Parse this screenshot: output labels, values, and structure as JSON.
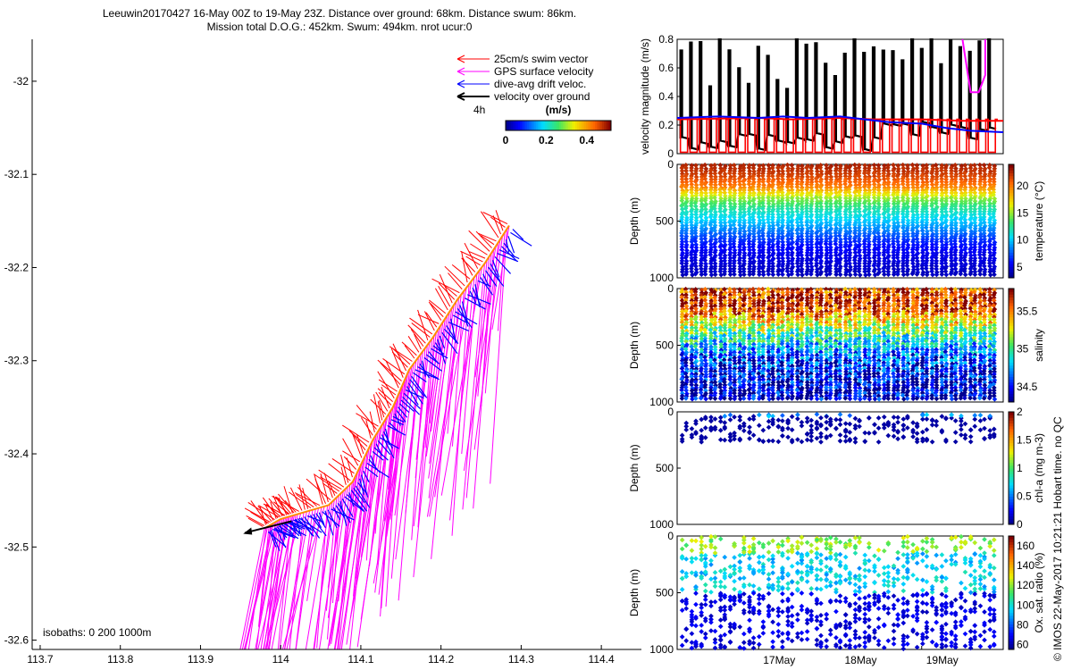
{
  "header": {
    "line1": "Leeuwin20170427 16-May 00Z to 19-May 23Z. Distance over ground: 68km. Distance swum: 86km.",
    "line2": "Mission total D.O.G.: 452km. Swum: 494km. nrot ucur:0"
  },
  "side_note": "© IMOS 22-May-2017 10:21:21 Hobart time. no QC",
  "colors": {
    "swim": "#ff0000",
    "gps": "#ff00ff",
    "drift": "#0000ff",
    "ground": "#000000",
    "track": "#ff8c00"
  },
  "chart_data": [
    {
      "type": "scatter",
      "panel": "map",
      "x_ticks": [
        "113.7",
        "113.8",
        "113.9",
        "114",
        "114.1",
        "114.2",
        "114.3",
        "114.4"
      ],
      "y_ticks": [
        "-32",
        "-32.1",
        "-32.2",
        "-32.3",
        "-32.4",
        "-32.5",
        "-32.6"
      ],
      "xlim": [
        113.69,
        114.45
      ],
      "ylim": [
        -32.61,
        -31.955
      ],
      "legend": [
        {
          "label": "25cm/s swim vector",
          "color": "#ff0000"
        },
        {
          "label": "GPS surface velocity",
          "color": "#ff00ff"
        },
        {
          "label": "dive-avg drift veloc.",
          "color": "#0000ff"
        },
        {
          "label": "velocity over ground",
          "color": "#000000"
        }
      ],
      "legend_position": "top-right",
      "time_marker_label": "4h",
      "colorbar": {
        "label": "(m/s)",
        "ticks": [
          "0",
          "0.2",
          "0.4"
        ],
        "range": [
          0,
          0.52
        ]
      },
      "isobaths_label": "isobaths: 0   200  1000m",
      "track": {
        "lon": [
          114.285,
          114.255,
          114.22,
          114.19,
          114.16,
          114.14,
          114.115,
          114.09,
          114.06,
          114.02,
          114.0,
          113.98
        ],
        "lat": [
          -32.155,
          -32.195,
          -32.235,
          -32.275,
          -32.31,
          -32.35,
          -32.385,
          -32.43,
          -32.455,
          -32.465,
          -32.47,
          -32.48
        ]
      }
    },
    {
      "type": "line",
      "panel": "velocity",
      "ylabel": "velocity magnitude (m/s)",
      "y_ticks": [
        "0",
        "0.2",
        "0.4",
        "0.6",
        "0.8"
      ],
      "ylim": [
        0,
        0.8
      ],
      "xlim": [
        16,
        20
      ],
      "series": [
        {
          "color": "#ff0000",
          "x": [
            16.0,
            17.0,
            17.4,
            18.0,
            18.4,
            19.0,
            19.5,
            20.0
          ],
          "values": [
            0.24,
            0.25,
            0.24,
            0.25,
            0.24,
            0.24,
            0.23,
            0.23
          ]
        },
        {
          "color": "#0000ff",
          "x": [
            16.0,
            16.5,
            17.0,
            17.3,
            17.6,
            18.0,
            18.3,
            18.6,
            19.0,
            19.3,
            19.6,
            20.0
          ],
          "values": [
            0.25,
            0.26,
            0.25,
            0.26,
            0.25,
            0.26,
            0.24,
            0.22,
            0.21,
            0.18,
            0.16,
            0.15
          ]
        },
        {
          "color": "#ff00ff",
          "x": [
            19.5,
            19.6,
            19.7,
            19.78,
            19.78
          ],
          "values": [
            0.8,
            0.43,
            0.43,
            0.55,
            0.8
          ]
        }
      ]
    },
    {
      "type": "scatter",
      "panel": "temperature",
      "ylabel": "Depth (m)",
      "y_ticks": [
        "0",
        "500",
        "1000"
      ],
      "ylim": [
        1000,
        0
      ],
      "colorbar": {
        "label": "temperature (°C)",
        "ticks": [
          "5",
          "10",
          "15",
          "20"
        ],
        "range": [
          3,
          24
        ]
      },
      "profile": {
        "depth": [
          0,
          100,
          200,
          300,
          400,
          500,
          600,
          700,
          800,
          900,
          1000
        ],
        "values": [
          23,
          22,
          20,
          15,
          12,
          10,
          8,
          6,
          5,
          4.5,
          4
        ]
      },
      "dive_count": 33
    },
    {
      "type": "scatter",
      "panel": "salinity",
      "ylabel": "Depth (m)",
      "y_ticks": [
        "0",
        "500",
        "1000"
      ],
      "ylim": [
        1000,
        0
      ],
      "colorbar": {
        "label": "salinity",
        "ticks": [
          "34.5",
          "35",
          "35.5"
        ],
        "range": [
          34.3,
          35.8
        ]
      },
      "profile": {
        "depth": [
          0,
          100,
          200,
          300,
          400,
          500,
          600,
          700,
          800,
          900,
          1000
        ],
        "values": [
          35.6,
          35.7,
          35.6,
          35.3,
          35.0,
          34.8,
          34.6,
          34.5,
          34.45,
          34.4,
          34.4
        ]
      },
      "dive_count": 33
    },
    {
      "type": "scatter",
      "panel": "chla",
      "ylabel": "Depth (m)",
      "y_ticks": [
        "0",
        "500",
        "1000"
      ],
      "ylim": [
        1000,
        0
      ],
      "colorbar": {
        "label": "chl-a (mg m-3)",
        "ticks": [
          "0",
          "0.5",
          "1",
          "1.5",
          "2"
        ],
        "range": [
          0,
          2
        ]
      },
      "dive_count": 33
    },
    {
      "type": "scatter",
      "panel": "oxygen",
      "ylabel": "Depth (m)",
      "y_ticks": [
        "0",
        "500",
        "1000"
      ],
      "ylim": [
        1000,
        0
      ],
      "colorbar": {
        "label": "Ox. sat. ratio (%)",
        "ticks": [
          "60",
          "80",
          "100",
          "120",
          "140",
          "160"
        ],
        "range": [
          55,
          170
        ]
      },
      "x_ticks": [
        "17May",
        "18May",
        "19May"
      ],
      "dive_count": 33
    }
  ]
}
